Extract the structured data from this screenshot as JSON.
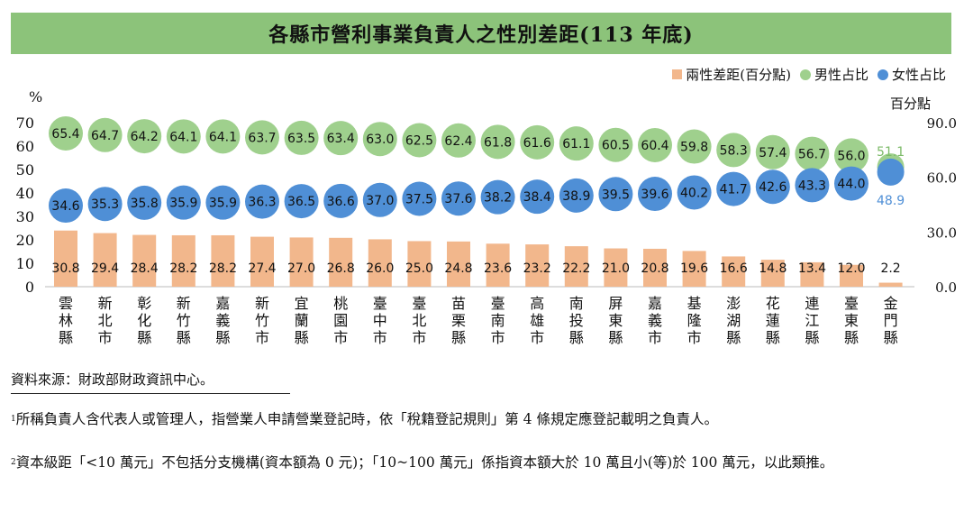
{
  "title": "各縣市營利事業負責人之性別差距(113 年底)",
  "legend": {
    "diff": "兩性差距(百分點)",
    "male": "男性占比",
    "female": "女性占比"
  },
  "colors": {
    "diff": "#f2b78c",
    "male": "#9fd08d",
    "female": "#4f8fd6",
    "title_bg": "#8cc37a"
  },
  "units": {
    "left": "%",
    "right": "百分點"
  },
  "chart_data": {
    "type": "bar",
    "title": "各縣市營利事業負責人之性別差距(113 年底)",
    "categories": [
      "雲林縣",
      "新北市",
      "彰化縣",
      "新竹縣",
      "嘉義縣",
      "新竹市",
      "宜蘭縣",
      "桃園市",
      "臺中市",
      "臺北市",
      "苗栗縣",
      "臺南市",
      "高雄市",
      "南投縣",
      "屏東縣",
      "嘉義市",
      "基隆市",
      "澎湖縣",
      "花蓮縣",
      "連江縣",
      "臺東縣",
      "金門縣"
    ],
    "series": [
      {
        "name": "兩性差距(百分點)",
        "type": "bar",
        "axis": "right",
        "values": [
          30.8,
          29.4,
          28.4,
          28.2,
          28.2,
          27.4,
          27.0,
          26.8,
          26.0,
          25.0,
          24.8,
          23.6,
          23.2,
          22.2,
          21.0,
          20.8,
          19.6,
          16.6,
          14.8,
          13.4,
          12.0,
          2.2
        ],
        "labels": [
          "30.8",
          "29.4",
          "28.4",
          "28.2",
          "28.2",
          "27.4",
          "27.0",
          "26.8",
          "26.0",
          "25.0",
          "24.8",
          "23.6",
          "23.2",
          "22.2",
          "21.0",
          "20.8",
          "19.6",
          "16.6",
          "14.8",
          "13.4",
          "12.0",
          "2.2"
        ]
      },
      {
        "name": "男性占比",
        "type": "scatter",
        "axis": "left",
        "values": [
          65.4,
          64.7,
          64.2,
          64.1,
          64.1,
          63.7,
          63.5,
          63.4,
          63.0,
          62.5,
          62.4,
          61.8,
          61.6,
          61.1,
          60.5,
          60.4,
          59.8,
          58.3,
          57.4,
          56.7,
          56.0,
          51.1
        ],
        "labels": [
          "65.4",
          "64.7",
          "64.2",
          "64.1",
          "64.1",
          "63.7",
          "63.5",
          "63.4",
          "63.0",
          "62.5",
          "62.4",
          "61.8",
          "61.6",
          "61.1",
          "60.5",
          "60.4",
          "59.8",
          "58.3",
          "57.4",
          "56.7",
          "56.0",
          "51.1"
        ]
      },
      {
        "name": "女性占比",
        "type": "scatter",
        "axis": "left",
        "values": [
          34.6,
          35.3,
          35.8,
          35.9,
          35.9,
          36.3,
          36.5,
          36.6,
          37.0,
          37.5,
          37.6,
          38.2,
          38.4,
          38.9,
          39.5,
          39.6,
          40.2,
          41.7,
          42.6,
          43.3,
          44.0,
          48.9
        ],
        "labels": [
          "34.6",
          "35.3",
          "35.8",
          "35.9",
          "35.9",
          "36.3",
          "36.5",
          "36.6",
          "37.0",
          "37.5",
          "37.6",
          "38.2",
          "38.4",
          "38.9",
          "39.5",
          "39.6",
          "40.2",
          "41.7",
          "42.6",
          "43.3",
          "44.0",
          "48.9"
        ]
      }
    ],
    "y_left": {
      "label": "%",
      "range": [
        0,
        70
      ],
      "ticks": [
        "0",
        "10",
        "20",
        "30",
        "40",
        "50",
        "60",
        "70"
      ]
    },
    "y_right": {
      "label": "百分點",
      "range": [
        0,
        90
      ],
      "ticks": [
        "0.0",
        "30.0",
        "60.0",
        "90.0"
      ]
    },
    "legend_position": "top-right",
    "grid": false
  },
  "source": "資料來源：財政部財政資訊中心。",
  "notes": [
    {
      "mark": "1",
      "text": "所稱負責人含代表人或管理人，指營業人申請營業登記時，依「稅籍登記規則」第 4 條規定應登記載明之負責人。"
    },
    {
      "mark": "2",
      "text": "資本級距「<10 萬元」不包括分支機構(資本額為 0 元)；「10~100 萬元」係指資本額大於 10 萬且小(等)於 100 萬元，以此類推。"
    }
  ]
}
